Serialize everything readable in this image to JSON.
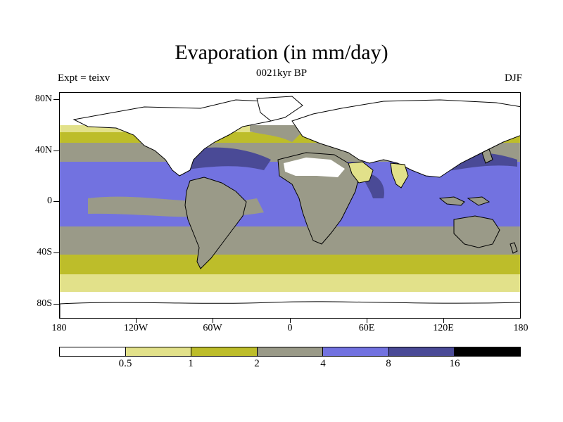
{
  "title": "Evaporation (in mm/day)",
  "subtitle": "0021kyr BP",
  "left_label": "Expt = teixv",
  "right_label": "DJF",
  "y_axis_labels": [
    "80N",
    "40N",
    "0",
    "40S",
    "80S"
  ],
  "x_axis_labels": [
    "180",
    "120W",
    "60W",
    "0",
    "60E",
    "120E",
    "180"
  ],
  "colorbar": {
    "colors": [
      "#ffffff",
      "#e2e18a",
      "#bdbd2a",
      "#9a9a88",
      "#7272e0",
      "#4a4a96",
      "#000000"
    ],
    "labels": [
      "0.5",
      "1",
      "2",
      "4",
      "8",
      "16"
    ]
  },
  "map": {
    "projection": "cylindrical-equidistant",
    "lon_range": [
      -180,
      180
    ],
    "lat_range": [
      -90,
      90
    ],
    "variable": "evaporation",
    "units": "mm/day",
    "season": "DJF"
  }
}
